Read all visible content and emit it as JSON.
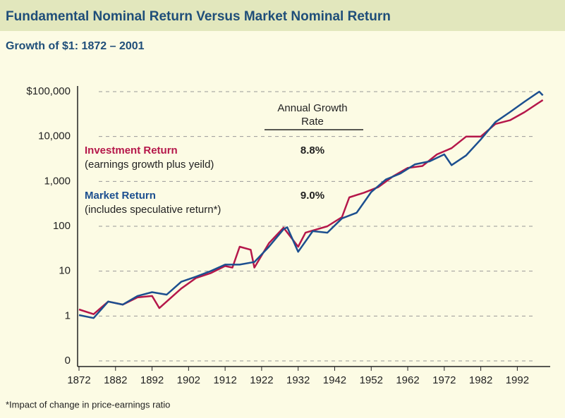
{
  "chart_data": {
    "type": "line",
    "title": "Fundamental Nominal Return Versus Market Nominal Return",
    "subtitle": "Growth of $1: 1872 – 2001",
    "legend_header": [
      "Annual Growth",
      "Rate"
    ],
    "footnote": "*Impact of change in price-earnings ratio",
    "log_scale": true,
    "grid": true,
    "xlim": [
      1872,
      2001
    ],
    "xticks": [
      1872,
      1882,
      1892,
      1902,
      1912,
      1922,
      1932,
      1942,
      1952,
      1962,
      1972,
      1982,
      1992
    ],
    "ylim": [
      0.1,
      100000
    ],
    "yticks": [
      {
        "value": 0.1,
        "label": "0"
      },
      1,
      10,
      100,
      {
        "value": 1000,
        "label": "1,000"
      },
      {
        "value": 10000,
        "label": "10,000"
      },
      {
        "value": 100000,
        "label": "$100,000"
      }
    ],
    "series": [
      {
        "name": "Investment Return",
        "description": "(earnings growth plus yeild)",
        "growth_rate": "8.8%",
        "color": "#b5174a",
        "x": [
          1872,
          1876,
          1880,
          1884,
          1888,
          1892,
          1894,
          1900,
          1904,
          1908,
          1912,
          1914,
          1916,
          1919,
          1920,
          1924,
          1928,
          1932,
          1934,
          1940,
          1944,
          1946,
          1950,
          1954,
          1958,
          1962,
          1966,
          1970,
          1974,
          1978,
          1982,
          1986,
          1990,
          1994,
          1999
        ],
        "values": [
          1.4,
          1.1,
          2.1,
          1.8,
          2.6,
          2.8,
          1.5,
          4.1,
          7,
          9,
          13,
          12,
          35,
          30,
          12,
          42,
          93,
          35,
          72,
          100,
          160,
          440,
          560,
          750,
          1300,
          2000,
          2200,
          4000,
          5500,
          10000,
          10000,
          19000,
          23000,
          35000,
          65000
        ]
      },
      {
        "name": "Market Return",
        "description": "(includes speculative return*)",
        "growth_rate": "9.0%",
        "color": "#1c4f8f",
        "x": [
          1872,
          1876,
          1880,
          1884,
          1888,
          1892,
          1896,
          1900,
          1904,
          1908,
          1912,
          1916,
          1920,
          1924,
          1928,
          1929,
          1932,
          1936,
          1940,
          1944,
          1948,
          1952,
          1956,
          1960,
          1964,
          1968,
          1972,
          1974,
          1978,
          1982,
          1986,
          1990,
          1994,
          1998,
          1999
        ],
        "values": [
          1.05,
          0.9,
          2.1,
          1.8,
          2.8,
          3.4,
          3.0,
          5.8,
          7.5,
          10,
          14,
          14,
          16,
          35,
          86,
          95,
          27,
          78,
          72,
          150,
          200,
          580,
          1100,
          1500,
          2400,
          2800,
          4000,
          2300,
          3800,
          8600,
          21000,
          35000,
          60000,
          100000,
          83000
        ]
      }
    ]
  }
}
